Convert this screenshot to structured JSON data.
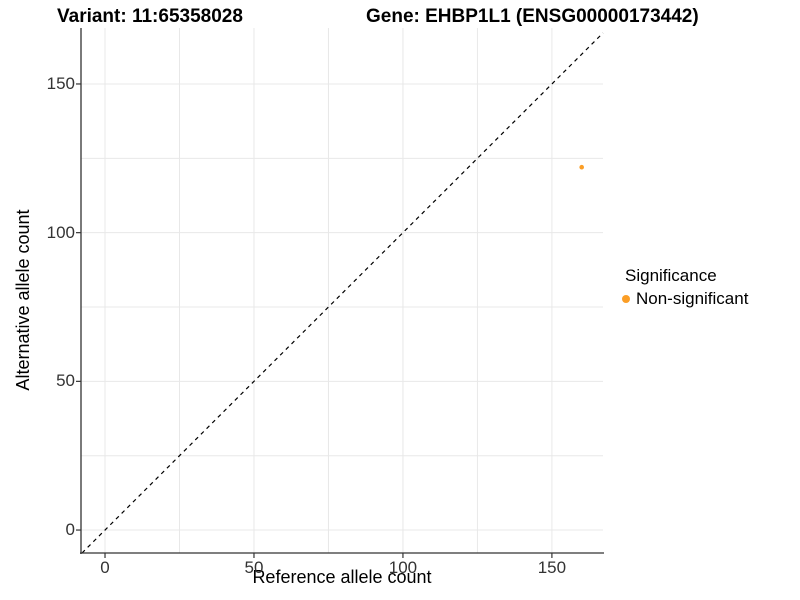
{
  "titles": {
    "variant": "Variant: 11:65358028",
    "gene": "Gene: EHBP1L1 (ENSG00000173442)"
  },
  "colors": {
    "point_orange": "#FB9E26",
    "grid": "#E8E8E8",
    "axis_line": "#333333",
    "tick_text": "#333333",
    "dashed_line": "#000000",
    "background": "#FFFFFF"
  },
  "chart_data": {
    "type": "scatter",
    "title_left": "Variant: 11:65358028",
    "title_right": "Gene: EHBP1L1 (ENSG00000173442)",
    "xlabel": "Reference allele count",
    "ylabel": "Alternative allele count",
    "xlim": [
      -8.06,
      167.15
    ],
    "ylim": [
      -7.72,
      168.82
    ],
    "xticks": [
      0,
      50,
      100,
      150
    ],
    "yticks": [
      0,
      50,
      100,
      150
    ],
    "grid_values_x": [
      0,
      25,
      50,
      75,
      100,
      125,
      150
    ],
    "grid_values_y": [
      0,
      25,
      50,
      75,
      100,
      125,
      150
    ],
    "grid_on": true,
    "identity_line": {
      "slope": 1,
      "intercept": 0,
      "style": "dashed",
      "color": "#000000"
    },
    "series": [
      {
        "name": "Non-significant",
        "color": "#FB9E26",
        "point_radius": 2.3,
        "points": [
          {
            "x": 160,
            "y": 122
          }
        ]
      }
    ],
    "legend": {
      "title": "Significance",
      "position": "right",
      "items": [
        {
          "label": "Non-significant",
          "color": "#FB9E26"
        }
      ]
    }
  }
}
